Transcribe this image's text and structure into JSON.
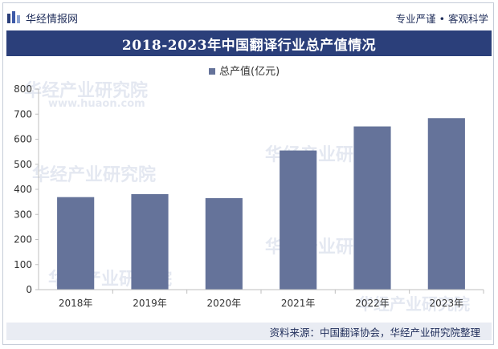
{
  "header": {
    "brand_name": "华经情报网",
    "slogan": "专业严谨 • 客观科学"
  },
  "watermark": {
    "text": "华经产业研究院",
    "url": "www.huaon.com"
  },
  "chart_data": {
    "type": "bar",
    "title": "2018-2023年中国翻译行业总产值情况",
    "categories": [
      "2018年",
      "2019年",
      "2020年",
      "2021年",
      "2022年",
      "2023年"
    ],
    "series": [
      {
        "name": "总产值(亿元)",
        "values": [
          369,
          381,
          365,
          555,
          651,
          684
        ],
        "color": "#65739a"
      }
    ],
    "ylim": [
      0,
      800
    ],
    "yticks": [
      0,
      100,
      200,
      300,
      400,
      500,
      600,
      700,
      800
    ],
    "legend": "top-center",
    "grid": false
  },
  "footer": {
    "source": "资料来源：中国翻译协会，华经产业研究院整理"
  }
}
